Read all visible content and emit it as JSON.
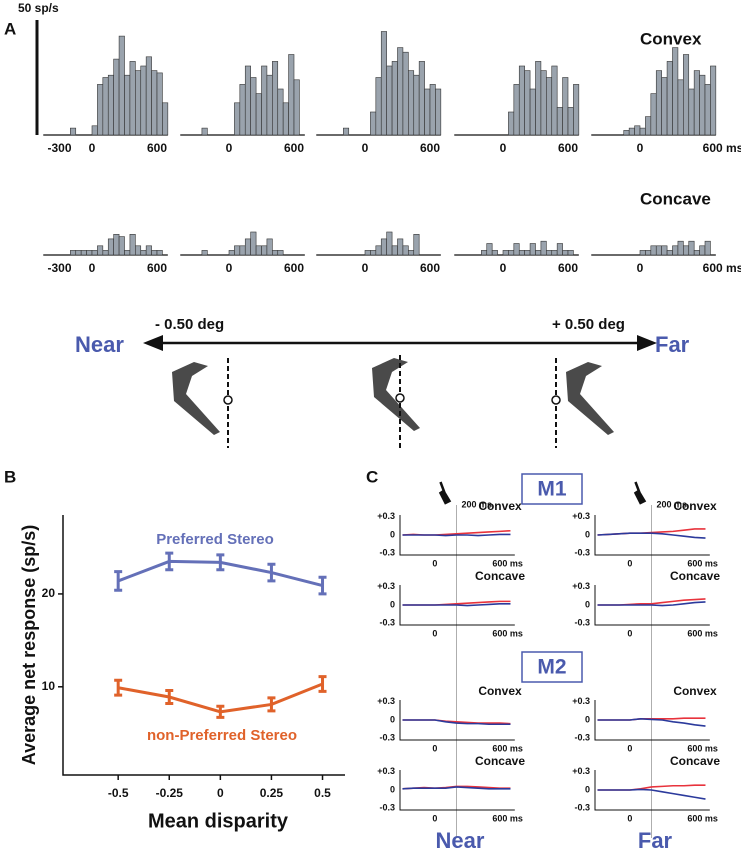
{
  "stimulus": {
    "near": "Near",
    "far": "Far",
    "left": "- 0.50 deg",
    "right": "+ 0.50 deg"
  },
  "chart_data": [
    {
      "type": "histogram",
      "label": "A",
      "scale_bar": {
        "value": 50,
        "label": "50 sp/s"
      },
      "xlim": [
        -450,
        700
      ],
      "bins": [
        -300,
        -250,
        -200,
        -150,
        -100,
        -50,
        0,
        50,
        100,
        150,
        200,
        250,
        300,
        350,
        400,
        450,
        500,
        550,
        600,
        650,
        700
      ],
      "rows": [
        {
          "title": "Convex",
          "panels": [
            {
              "values": [
                0,
                0,
                3,
                0,
                0,
                0,
                4,
                22,
                25,
                26,
                33,
                43,
                26,
                32,
                28,
                30,
                34,
                28,
                27,
                14
              ],
              "xticks": [
                -300,
                0,
                600
              ]
            },
            {
              "values": [
                0,
                3,
                0,
                0,
                0,
                0,
                0,
                14,
                22,
                30,
                25,
                18,
                30,
                26,
                32,
                20,
                14,
                35,
                24,
                0
              ],
              "xticks": [
                0,
                600
              ]
            },
            {
              "values": [
                0,
                0,
                3,
                0,
                0,
                0,
                0,
                10,
                25,
                45,
                30,
                32,
                38,
                36,
                28,
                26,
                32,
                20,
                22,
                20
              ],
              "xticks": [
                0,
                600
              ]
            },
            {
              "values": [
                0,
                0,
                0,
                0,
                0,
                0,
                0,
                10,
                22,
                30,
                28,
                20,
                32,
                28,
                25,
                30,
                12,
                25,
                12,
                22
              ],
              "xticks": [
                0,
                600
              ]
            },
            {
              "values": [
                0,
                0,
                0,
                2,
                3,
                4,
                3,
                8,
                18,
                28,
                25,
                32,
                38,
                24,
                35,
                20,
                28,
                26,
                22,
                30
              ],
              "xticks": [
                0,
                {
                  "value": 600,
                  "label": "600 ms"
                }
              ]
            }
          ]
        },
        {
          "title": "Concave",
          "panels": [
            {
              "values": [
                0,
                0,
                2,
                2,
                2,
                2,
                2,
                4,
                2,
                7,
                9,
                8,
                2,
                9,
                4,
                2,
                4,
                2,
                2,
                0
              ],
              "xticks": [
                -300,
                0,
                600
              ]
            },
            {
              "values": [
                0,
                2,
                0,
                0,
                0,
                0,
                2,
                4,
                4,
                7,
                10,
                4,
                4,
                7,
                2,
                2,
                0,
                0,
                0,
                0
              ],
              "xticks": [
                0,
                600
              ]
            },
            {
              "values": [
                0,
                0,
                0,
                0,
                0,
                0,
                2,
                2,
                4,
                7,
                10,
                4,
                7,
                4,
                2,
                9,
                0,
                0,
                0,
                0
              ],
              "xticks": [
                0,
                600
              ]
            },
            {
              "values": [
                0,
                0,
                2,
                5,
                2,
                0,
                2,
                2,
                5,
                2,
                2,
                5,
                2,
                6,
                2,
                2,
                5,
                2,
                2,
                0
              ],
              "xticks": [
                0,
                600
              ]
            },
            {
              "values": [
                0,
                0,
                0,
                0,
                0,
                0,
                2,
                2,
                4,
                4,
                4,
                2,
                4,
                6,
                4,
                6,
                2,
                4,
                6,
                0
              ],
              "xticks": [
                0,
                {
                  "value": 600,
                  "label": "600 ms"
                }
              ]
            }
          ]
        }
      ]
    },
    {
      "type": "line",
      "label": "B",
      "xlabel": "Mean disparity",
      "ylabel": "Average net response (sp/s)",
      "xlim": [
        -0.77,
        0.61
      ],
      "ylim": [
        0.5,
        28.5
      ],
      "xticks": [
        -0.5,
        -0.25,
        0,
        0.25,
        0.5
      ],
      "yticks": [
        10,
        20
      ],
      "x": [
        -0.5,
        -0.25,
        0,
        0.25,
        0.5
      ],
      "series": [
        {
          "name": "Preferred Stereo",
          "color": "#6470b8",
          "values": [
            21.4,
            23.5,
            23.4,
            22.3,
            20.9
          ],
          "errors": [
            1.0,
            0.9,
            0.8,
            0.9,
            0.9
          ]
        },
        {
          "name": "non-Preferred Stereo",
          "color": "#e0622a",
          "values": [
            9.9,
            8.9,
            7.3,
            8.1,
            10.3
          ],
          "errors": [
            0.8,
            0.7,
            0.6,
            0.7,
            0.8
          ]
        }
      ]
    },
    {
      "type": "timecourse",
      "label": "C",
      "xlim": [
        -323,
        740
      ],
      "ylim": [
        -0.33,
        0.33
      ],
      "xticks": [
        0,
        {
          "value": 600,
          "label": "600 ms"
        }
      ],
      "yticks": [
        {
          "value": 0.3,
          "label": "+0.3"
        },
        0,
        -0.3
      ],
      "marker": {
        "value": 200,
        "label": "200 ms"
      },
      "columns": [
        "Near",
        "Far"
      ],
      "x": [
        -300,
        -200,
        -100,
        0,
        100,
        200,
        300,
        400,
        500,
        600,
        700
      ],
      "groups": [
        {
          "title": "M1",
          "rows": [
            {
              "title": "Convex",
              "panels": [
                {
                  "series": [
                    {
                      "color": "#e8333c",
                      "values": [
                        0,
                        0.01,
                        0,
                        0,
                        0.01,
                        0.02,
                        0.03,
                        0.04,
                        0.05,
                        0.06,
                        0.07
                      ]
                    },
                    {
                      "color": "#2b3a9c",
                      "values": [
                        0,
                        0,
                        0,
                        0,
                        -0.01,
                        0,
                        0,
                        -0.01,
                        0,
                        0.01,
                        0.01
                      ]
                    }
                  ]
                },
                {
                  "series": [
                    {
                      "color": "#e8333c",
                      "values": [
                        0,
                        0.01,
                        0.02,
                        0.03,
                        0.03,
                        0.04,
                        0.05,
                        0.06,
                        0.08,
                        0.1,
                        0.1
                      ]
                    },
                    {
                      "color": "#2b3a9c",
                      "values": [
                        0,
                        0.01,
                        0.02,
                        0.03,
                        0.03,
                        0.03,
                        0.02,
                        0,
                        -0.02,
                        -0.04,
                        -0.05
                      ]
                    }
                  ]
                }
              ]
            },
            {
              "title": "Concave",
              "panels": [
                {
                  "series": [
                    {
                      "color": "#e8333c",
                      "values": [
                        0,
                        0,
                        0,
                        0,
                        0.01,
                        0.02,
                        0.03,
                        0.04,
                        0.05,
                        0.06,
                        0.06
                      ]
                    },
                    {
                      "color": "#2b3a9c",
                      "values": [
                        0,
                        0,
                        0,
                        0,
                        0,
                        0,
                        -0.01,
                        0,
                        0.01,
                        0.02,
                        0.02
                      ]
                    }
                  ]
                },
                {
                  "series": [
                    {
                      "color": "#e8333c",
                      "values": [
                        0,
                        0,
                        0,
                        0.01,
                        0.02,
                        0.02,
                        0.04,
                        0.06,
                        0.08,
                        0.09,
                        0.1
                      ]
                    },
                    {
                      "color": "#2b3a9c",
                      "values": [
                        0,
                        0,
                        0,
                        0,
                        0,
                        0,
                        -0.01,
                        0,
                        0.02,
                        0.04,
                        0.05
                      ]
                    }
                  ]
                }
              ]
            }
          ]
        },
        {
          "title": "M2",
          "rows": [
            {
              "title": "Convex",
              "panels": [
                {
                  "series": [
                    {
                      "color": "#e8333c",
                      "values": [
                        0,
                        0,
                        0,
                        0,
                        -0.02,
                        -0.03,
                        -0.04,
                        -0.05,
                        -0.05,
                        -0.05,
                        -0.06
                      ]
                    },
                    {
                      "color": "#2b3a9c",
                      "values": [
                        0,
                        0,
                        0,
                        0,
                        -0.03,
                        -0.05,
                        -0.06,
                        -0.06,
                        -0.07,
                        -0.07,
                        -0.07
                      ]
                    }
                  ]
                },
                {
                  "series": [
                    {
                      "color": "#e8333c",
                      "values": [
                        0,
                        0,
                        0,
                        0,
                        0.02,
                        0.02,
                        0.02,
                        0.02,
                        0.03,
                        0.03,
                        0.03
                      ]
                    },
                    {
                      "color": "#2b3a9c",
                      "values": [
                        0,
                        0,
                        0,
                        0,
                        0.02,
                        0.01,
                        0,
                        -0.03,
                        -0.05,
                        -0.08,
                        -0.1
                      ]
                    }
                  ]
                }
              ]
            },
            {
              "title": "Concave",
              "panels": [
                {
                  "series": [
                    {
                      "color": "#e8333c",
                      "values": [
                        0.02,
                        0.03,
                        0.04,
                        0.03,
                        0.04,
                        0.06,
                        0.06,
                        0.05,
                        0.04,
                        0.03,
                        0.03
                      ]
                    },
                    {
                      "color": "#2b3a9c",
                      "values": [
                        0.02,
                        0.03,
                        0.03,
                        0.03,
                        0.03,
                        0.05,
                        0.04,
                        0.03,
                        0.02,
                        0.02,
                        0.02
                      ]
                    }
                  ]
                },
                {
                  "series": [
                    {
                      "color": "#e8333c",
                      "values": [
                        0,
                        0,
                        0,
                        0,
                        0.02,
                        0.05,
                        0.06,
                        0.07,
                        0.07,
                        0.08,
                        0.08
                      ]
                    },
                    {
                      "color": "#2b3a9c",
                      "values": [
                        0,
                        0,
                        0,
                        0,
                        0.01,
                        0,
                        -0.03,
                        -0.06,
                        -0.09,
                        -0.12,
                        -0.15
                      ]
                    }
                  ]
                }
              ]
            }
          ]
        }
      ]
    }
  ]
}
